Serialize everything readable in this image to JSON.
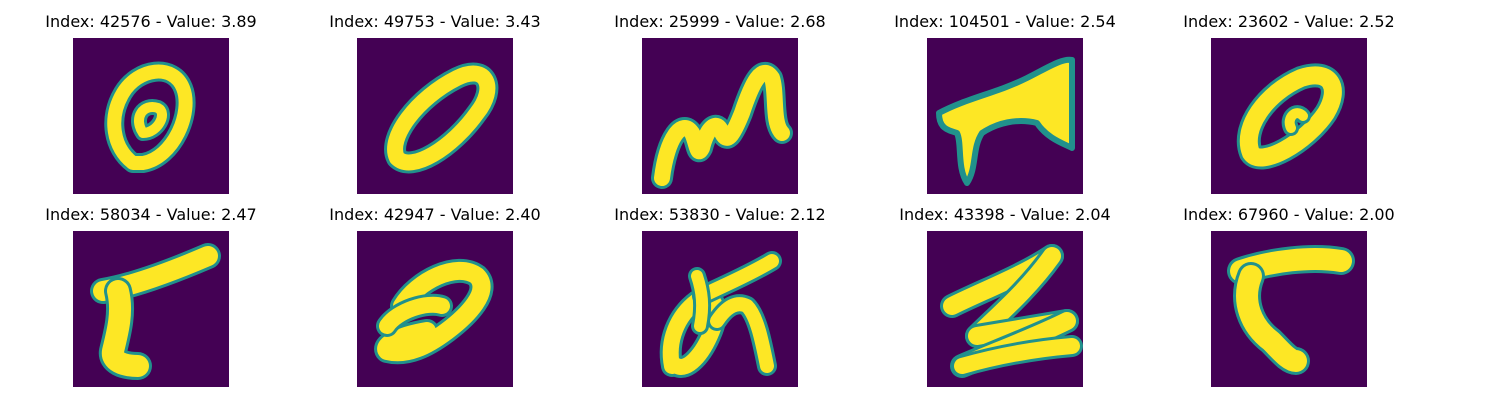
{
  "figure": {
    "panels": [
      {
        "title": "Index: 42576 - Value: 3.89",
        "glyph": "loop-oval-icon"
      },
      {
        "title": "Index: 49753 - Value: 3.43",
        "glyph": "slanted-zero-icon"
      },
      {
        "title": "Index: 25999 - Value: 2.68",
        "glyph": "m-shape-icon"
      },
      {
        "title": "Index: 104501 - Value: 2.54",
        "glyph": "blob-shape-icon"
      },
      {
        "title": "Index: 23602 - Value: 2.52",
        "glyph": "tilted-zero-icon"
      },
      {
        "title": "Index: 58034 - Value: 2.47",
        "glyph": "r-shape-icon"
      },
      {
        "title": "Index: 42947 - Value: 2.40",
        "glyph": "curved-nine-icon"
      },
      {
        "title": "Index: 53830 - Value: 2.12",
        "glyph": "scribble-letter-icon"
      },
      {
        "title": "Index: 43398 - Value: 2.04",
        "glyph": "z-shape-icon"
      },
      {
        "title": "Index: 67960 - Value: 2.00",
        "glyph": "seven-shape-icon"
      }
    ],
    "colors": {
      "background": "#440154",
      "stroke_edge": "#21918c",
      "stroke_core": "#fde725"
    }
  }
}
